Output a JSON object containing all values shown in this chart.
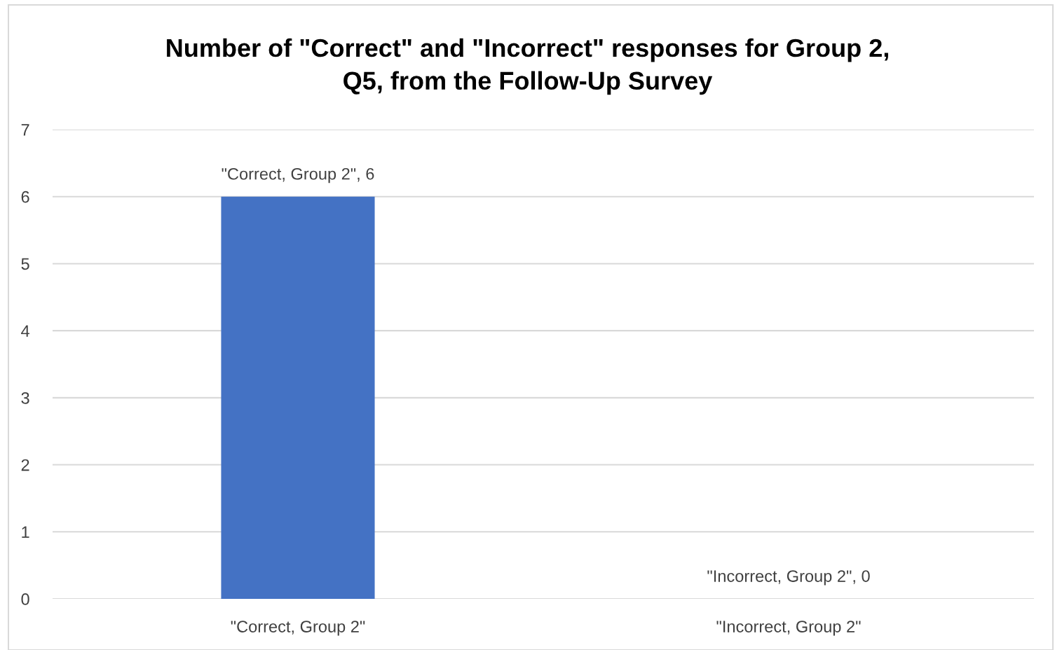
{
  "chart_data": {
    "type": "bar",
    "title": "Number of \"Correct\" and \"Incorrect\" responses for Group 2,\nQ5, from the Follow-Up Survey",
    "categories": [
      "\"Correct, Group 2\"",
      "\"Incorrect, Group 2\""
    ],
    "values": [
      6,
      0
    ],
    "color": "#4472c4",
    "value_labels": [
      "\"Correct, Group 2\", 6",
      "\"Incorrect, Group 2\", 0"
    ],
    "ylim": [
      0,
      7
    ],
    "yticks": [
      0,
      1,
      2,
      3,
      4,
      5,
      6,
      7
    ],
    "grid": "y",
    "legend": false
  }
}
